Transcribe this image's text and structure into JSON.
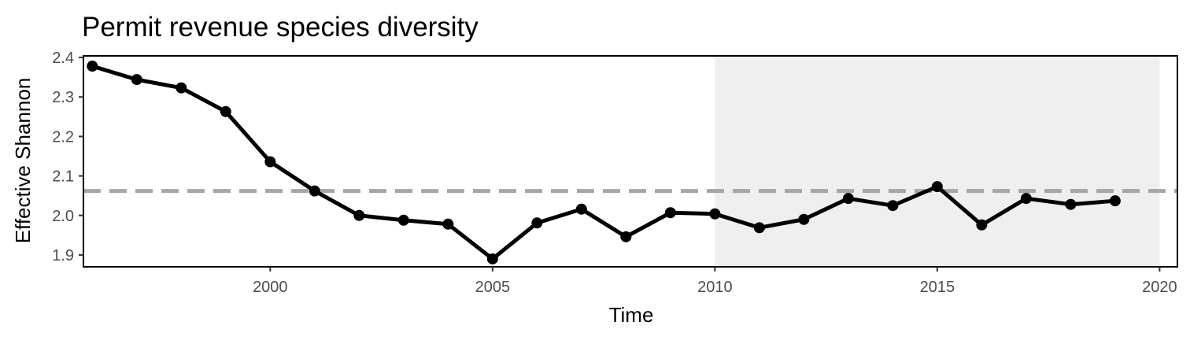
{
  "chart_data": {
    "type": "line",
    "title": "Permit revenue species diversity",
    "xlabel": "Time",
    "ylabel": "Effective Shannon",
    "xlim": [
      1995.8,
      2020.4
    ],
    "ylim": [
      1.87,
      2.404
    ],
    "x_ticks": [
      2000,
      2005,
      2010,
      2015,
      2020
    ],
    "y_ticks": [
      1.9,
      2.0,
      2.1,
      2.2,
      2.3,
      2.4
    ],
    "y_tick_labels": [
      "1.9",
      "2.0",
      "2.1",
      "2.2",
      "2.3",
      "2.4"
    ],
    "grid": false,
    "shaded_range": {
      "x": [
        2010,
        2020
      ],
      "color": "#efefef"
    },
    "reference_line": {
      "y": 2.062,
      "style": "dashed",
      "color": "#a6a6a6"
    },
    "series": [
      {
        "color": "#000000",
        "x": [
          1996,
          1997,
          1998,
          1999,
          2000,
          2001,
          2002,
          2003,
          2004,
          2005,
          2006,
          2007,
          2008,
          2009,
          2010,
          2011,
          2012,
          2013,
          2014,
          2015,
          2016,
          2017,
          2018,
          2019
        ],
        "y": [
          2.378,
          2.344,
          2.323,
          2.263,
          2.136,
          2.062,
          2.0,
          1.988,
          1.978,
          1.89,
          1.981,
          2.016,
          1.946,
          2.007,
          2.004,
          1.969,
          1.99,
          2.043,
          2.025,
          2.073,
          1.976,
          2.043,
          2.028,
          2.037
        ]
      }
    ]
  }
}
